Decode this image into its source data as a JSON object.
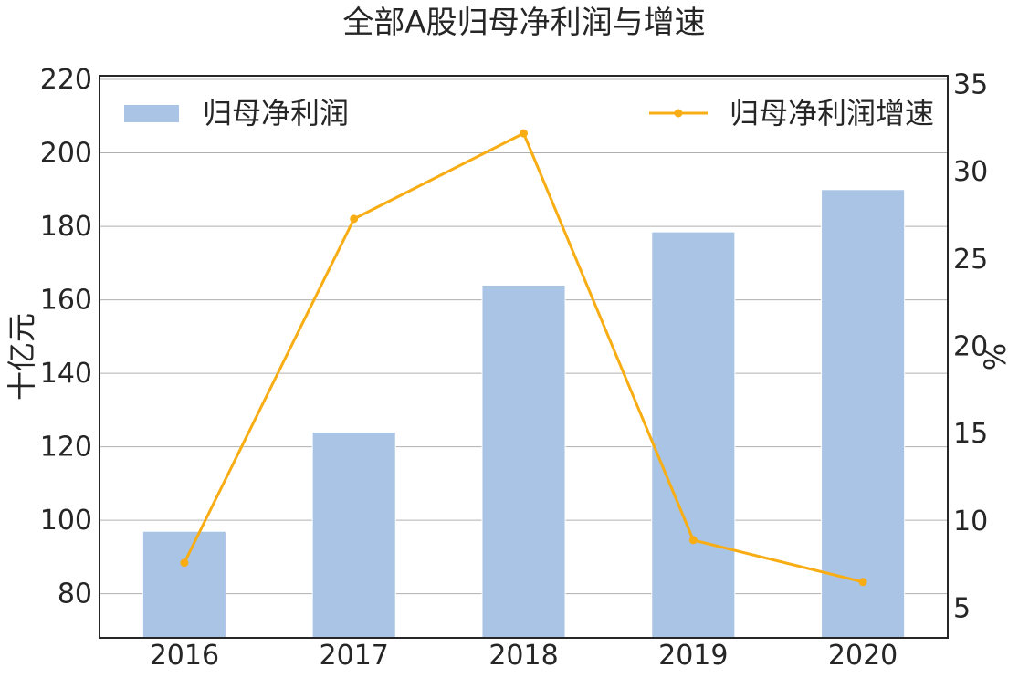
{
  "chart_data": {
    "type": "bar",
    "title": "全部A股归母净利润与增速",
    "categories": [
      "2016",
      "2017",
      "2018",
      "2019",
      "2020"
    ],
    "series": [
      {
        "name": "归母净利润",
        "type": "bar",
        "axis": "left",
        "color": "#a9c4e4",
        "values": [
          97,
          124,
          164,
          178.5,
          190
        ]
      },
      {
        "name": "归母净利润增速",
        "type": "line",
        "axis": "right",
        "color": "#f8ad14",
        "values": [
          7.6,
          27.3,
          32.2,
          8.9,
          6.5
        ]
      }
    ],
    "ylabel": "十亿元",
    "ylabel_right": "%",
    "ylim": [
      68,
      221
    ],
    "ylim_right": [
      3.3,
      35.5
    ],
    "yticks": [
      80,
      100,
      120,
      140,
      160,
      180,
      200,
      220
    ],
    "yticks_right": [
      5,
      10,
      15,
      20,
      25,
      30,
      35
    ],
    "grid": "horizontal",
    "legend": [
      "top-left",
      "top-right"
    ]
  }
}
